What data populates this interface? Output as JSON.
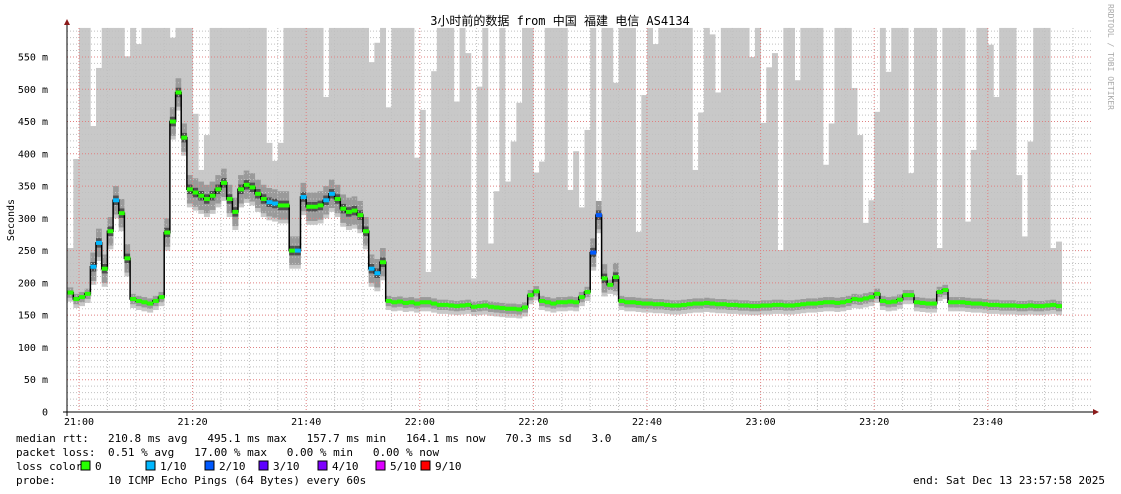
{
  "chart_data": {
    "type": "line",
    "title": "3小时前的数据 from 中国 福建 电信 AS4134",
    "ylabel": "Seconds",
    "xlabel": "",
    "ylim": [
      0,
      595
    ],
    "y_unit_suffix": "m",
    "y_ticks": [
      "0",
      "50 m",
      "100 m",
      "150 m",
      "200 m",
      "250 m",
      "300 m",
      "350 m",
      "400 m",
      "450 m",
      "500 m",
      "550 m"
    ],
    "x_ticks": [
      "21:00",
      "21:20",
      "21:40",
      "22:00",
      "22:20",
      "22:40",
      "23:00",
      "23:20",
      "23:40"
    ],
    "grid": true,
    "x_start": "20:58",
    "step_seconds": 60,
    "median_ms": [
      185,
      175,
      178,
      183,
      225,
      262,
      222,
      280,
      328,
      308,
      238,
      175,
      172,
      170,
      168,
      172,
      178,
      278,
      450,
      495,
      425,
      345,
      340,
      335,
      330,
      335,
      345,
      355,
      330,
      310,
      345,
      352,
      348,
      338,
      330,
      325,
      323,
      320,
      320,
      250,
      250,
      333,
      318,
      318,
      320,
      328,
      338,
      330,
      315,
      310,
      312,
      305,
      280,
      222,
      215,
      232,
      172,
      170,
      171,
      169,
      170,
      168,
      170,
      170,
      168,
      166,
      166,
      165,
      164,
      165,
      166,
      163,
      164,
      165,
      163,
      162,
      161,
      160,
      160,
      159,
      162,
      181,
      187,
      172,
      170,
      168,
      170,
      170,
      171,
      170,
      178,
      186,
      247,
      305,
      207,
      197,
      209,
      172,
      170,
      170,
      169,
      168,
      168,
      167,
      167,
      166,
      165,
      165,
      166,
      167,
      168,
      168,
      169,
      168,
      167,
      167,
      166,
      166,
      165,
      165,
      164,
      164,
      165,
      165,
      166,
      166,
      165,
      165,
      166,
      167,
      168,
      168,
      169,
      170,
      170,
      169,
      170,
      172,
      175,
      174,
      176,
      178,
      183,
      172,
      170,
      171,
      174,
      181,
      181,
      170,
      169,
      168,
      168,
      186,
      189,
      170,
      170,
      170,
      169,
      168,
      168,
      167,
      166,
      166,
      165,
      165,
      165,
      164,
      164,
      165,
      164,
      164,
      165,
      166,
      164
    ],
    "max_ms": [
      254,
      392,
      595,
      595,
      443,
      533,
      595,
      595,
      595,
      595,
      551,
      595,
      570,
      595,
      595,
      595,
      595,
      595,
      580,
      595,
      595,
      595,
      462,
      375,
      429,
      595,
      595,
      595,
      595,
      595,
      595,
      595,
      595,
      595,
      595,
      417,
      389,
      417,
      595,
      595,
      595,
      595,
      595,
      595,
      595,
      488,
      595,
      595,
      595,
      595,
      595,
      595,
      595,
      542,
      572,
      595,
      472,
      595,
      595,
      595,
      595,
      394,
      468,
      217,
      528,
      595,
      595,
      595,
      481,
      595,
      556,
      207,
      504,
      595,
      261,
      342,
      595,
      357,
      419,
      479,
      595,
      595,
      371,
      388,
      595,
      595,
      595,
      595,
      344,
      404,
      317,
      437,
      595,
      324,
      595,
      595,
      510,
      595,
      595,
      595,
      279,
      491,
      595,
      570,
      595,
      595,
      595,
      595,
      595,
      595,
      375,
      464,
      595,
      585,
      495,
      595,
      595,
      595,
      595,
      595,
      550,
      595,
      448,
      534,
      556,
      251,
      595,
      595,
      514,
      595,
      595,
      595,
      595,
      383,
      447,
      595,
      595,
      595,
      502,
      429,
      293,
      328,
      465,
      595,
      527,
      595,
      595,
      595,
      370,
      595,
      595,
      595,
      595,
      254,
      595,
      595,
      595,
      595,
      295,
      406,
      595,
      595,
      569,
      488,
      595,
      595,
      595,
      367,
      272,
      419,
      595,
      595,
      595,
      254,
      264
    ],
    "loss_level": [
      0,
      0,
      0,
      0,
      1,
      1,
      0,
      0,
      1,
      0,
      0,
      0,
      0,
      0,
      0,
      0,
      0,
      0,
      0,
      0,
      0,
      0,
      0,
      0,
      0,
      0,
      0,
      0,
      0,
      0,
      0,
      0,
      0,
      0,
      0,
      1,
      1,
      0,
      0,
      0,
      1,
      1,
      0,
      0,
      0,
      1,
      1,
      0,
      0,
      0,
      0,
      0,
      0,
      1,
      1,
      0,
      0,
      0,
      0,
      0,
      0,
      0,
      0,
      0,
      0,
      0,
      0,
      0,
      0,
      0,
      0,
      0,
      0,
      0,
      0,
      0,
      0,
      0,
      0,
      0,
      0,
      0,
      0,
      0,
      0,
      0,
      0,
      0,
      0,
      0,
      0,
      0,
      2,
      2,
      0,
      0,
      0,
      0,
      0,
      0,
      0,
      0,
      0,
      0,
      0,
      0,
      0,
      0,
      0,
      0,
      0,
      0,
      0,
      0,
      0,
      0,
      0,
      0,
      0,
      0,
      0,
      0,
      0,
      0,
      0,
      0,
      0,
      0,
      0,
      0,
      0,
      0,
      0,
      0,
      0,
      0,
      0,
      0,
      0,
      0,
      0,
      0,
      0,
      0,
      0,
      0,
      0,
      0,
      0,
      0,
      0,
      0,
      0,
      0,
      0,
      0,
      0,
      0,
      0,
      0,
      0,
      0,
      0,
      0,
      0,
      0,
      0,
      0,
      0,
      0,
      0,
      0,
      0,
      0,
      0
    ],
    "loss_colors": [
      "#26ff00",
      "#00b8ff",
      "#0059ff",
      "#5e00ff",
      "#7e00ff",
      "#dd00ff",
      "#ff0000"
    ]
  },
  "legend": {
    "median_rtt_label": "median rtt:",
    "median_rtt_values": "210.8 ms avg   495.1 ms max   157.7 ms min   164.1 ms now   70.3 ms sd   3.0   am/s",
    "packet_loss_label": "packet loss:",
    "packet_loss_values": "0.51 % avg   17.00 % max   0.00 % min   0.00 % now",
    "loss_color_label": "loss color:",
    "loss_color_items": [
      "0",
      "1/10",
      "2/10",
      "3/10",
      "4/10",
      "5/10",
      "9/10"
    ],
    "probe_label": "probe:",
    "probe_value": "10 ICMP Echo Pings (64 Bytes) every 60s",
    "end": "end: Sat Dec 13 23:57:58 2025"
  },
  "watermark": "RRDTOOL / TOBI OETIKER",
  "colors": {
    "smoke_light": "#c8c8c8",
    "smoke_mid": "#9a9a9a",
    "smoke_dark": "#505050",
    "grid_minor": "#c0c0c0",
    "grid_major": "#e08080",
    "axis_arrow": "#8b1a1a"
  }
}
